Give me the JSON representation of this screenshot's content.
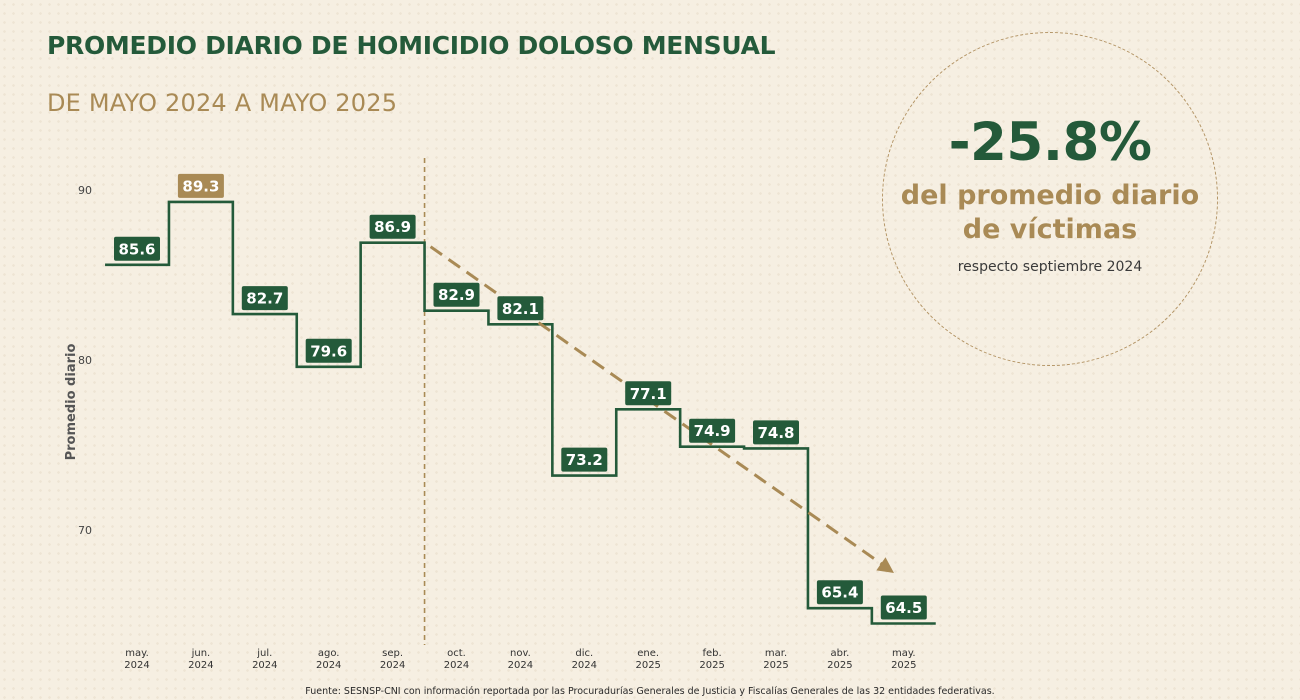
{
  "header": {
    "title": "PROMEDIO DIARIO DE HOMICIDIO DOLOSO MENSUAL",
    "subtitle": "DE MAYO 2024 A MAYO 2025"
  },
  "callout": {
    "percent": "-25.8%",
    "line1": "del promedio diario",
    "line2": "de víctimas",
    "note": "respecto septiembre 2024"
  },
  "source": "Fuente: SESNSP-CNI con información reportada por las Procuradurías Generales de Justicia y Fiscalías Generales de las 32 entidades federativas.",
  "colors": {
    "green": "#245a3a",
    "gold": "#a98a55",
    "background": "#f6efe2"
  },
  "chart_data": {
    "type": "line",
    "style": "step",
    "ylabel": "Promedio diario",
    "yticks": [
      70,
      80,
      90
    ],
    "ylim": [
      64,
      92
    ],
    "categories": [
      [
        "may.",
        "2024"
      ],
      [
        "jun.",
        "2024"
      ],
      [
        "jul.",
        "2024"
      ],
      [
        "ago.",
        "2024"
      ],
      [
        "sep.",
        "2024"
      ],
      [
        "oct.",
        "2024"
      ],
      [
        "nov.",
        "2024"
      ],
      [
        "dic.",
        "2024"
      ],
      [
        "ene.",
        "2025"
      ],
      [
        "feb.",
        "2025"
      ],
      [
        "mar.",
        "2025"
      ],
      [
        "abr.",
        "2025"
      ],
      [
        "may.",
        "2025"
      ]
    ],
    "values": [
      85.6,
      89.3,
      82.7,
      79.6,
      86.9,
      82.9,
      82.1,
      73.2,
      77.1,
      74.9,
      74.8,
      65.4,
      64.5
    ],
    "labels": [
      "85.6",
      "89.3",
      "82.7",
      "79.6",
      "86.9",
      "82.9",
      "82.1",
      "73.2",
      "77.1",
      "74.9",
      "74.8",
      "65.4",
      "64.5"
    ],
    "highlight_max_index": 1,
    "reference_line_after_index": 4,
    "trend_from_index": 4,
    "trend_to_index": 12,
    "grid": false,
    "legend": "none"
  }
}
